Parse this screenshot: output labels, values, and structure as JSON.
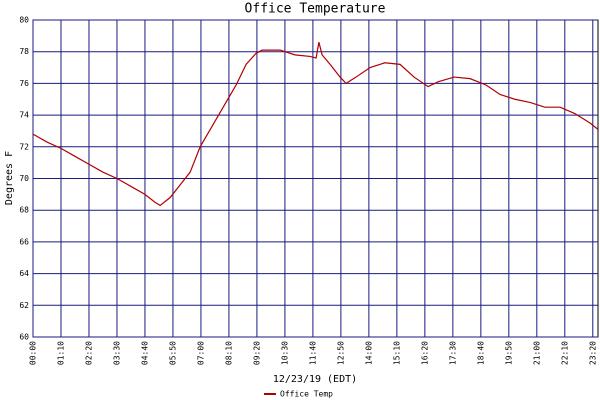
{
  "chart_data": {
    "type": "line",
    "title": "Office Temperature",
    "x_label": "12/23/19 (EDT)",
    "y_label": "Degrees F",
    "x": [
      0,
      35,
      70,
      105,
      140,
      175,
      210,
      245,
      280,
      305,
      318,
      343,
      368,
      393,
      418,
      448,
      478,
      508,
      533,
      558,
      573,
      618,
      655,
      693,
      708,
      715,
      723,
      743,
      768,
      783,
      808,
      843,
      880,
      918,
      953,
      988,
      1013,
      1053,
      1093,
      1133,
      1168,
      1205,
      1243,
      1280,
      1318,
      1355,
      1393,
      1413
    ],
    "series": [
      {
        "name": "Office Temp",
        "color": "#b00000",
        "values": [
          72.8,
          72.3,
          71.9,
          71.4,
          70.9,
          70.4,
          70.0,
          69.5,
          69.0,
          68.5,
          68.3,
          68.8,
          69.6,
          70.4,
          72.0,
          73.3,
          74.6,
          75.9,
          77.2,
          77.9,
          78.1,
          78.1,
          77.8,
          77.7,
          77.6,
          78.6,
          77.8,
          77.2,
          76.4,
          76.0,
          76.4,
          77.0,
          77.3,
          77.2,
          76.4,
          75.8,
          76.1,
          76.4,
          76.3,
          75.9,
          75.3,
          75.0,
          74.8,
          74.5,
          74.5,
          74.1,
          73.5,
          73.1
        ]
      }
    ],
    "xlim": [
      0,
      1413
    ],
    "xticks": [
      {
        "value": 0,
        "label": "00:00"
      },
      {
        "value": 70,
        "label": "01:10"
      },
      {
        "value": 140,
        "label": "02:20"
      },
      {
        "value": 210,
        "label": "03:30"
      },
      {
        "value": 280,
        "label": "04:40"
      },
      {
        "value": 350,
        "label": "05:50"
      },
      {
        "value": 420,
        "label": "07:00"
      },
      {
        "value": 490,
        "label": "08:10"
      },
      {
        "value": 560,
        "label": "09:20"
      },
      {
        "value": 630,
        "label": "10:30"
      },
      {
        "value": 700,
        "label": "11:40"
      },
      {
        "value": 770,
        "label": "12:50"
      },
      {
        "value": 840,
        "label": "14:00"
      },
      {
        "value": 910,
        "label": "15:10"
      },
      {
        "value": 980,
        "label": "16:20"
      },
      {
        "value": 1050,
        "label": "17:30"
      },
      {
        "value": 1120,
        "label": "18:40"
      },
      {
        "value": 1190,
        "label": "19:50"
      },
      {
        "value": 1260,
        "label": "21:00"
      },
      {
        "value": 1330,
        "label": "22:10"
      },
      {
        "value": 1400,
        "label": "23:20"
      }
    ],
    "ylim": [
      60,
      80
    ],
    "yticks": [
      60,
      62,
      64,
      66,
      68,
      70,
      72,
      74,
      76,
      78,
      80
    ],
    "grid": true,
    "grid_color": "#1a1a80"
  }
}
